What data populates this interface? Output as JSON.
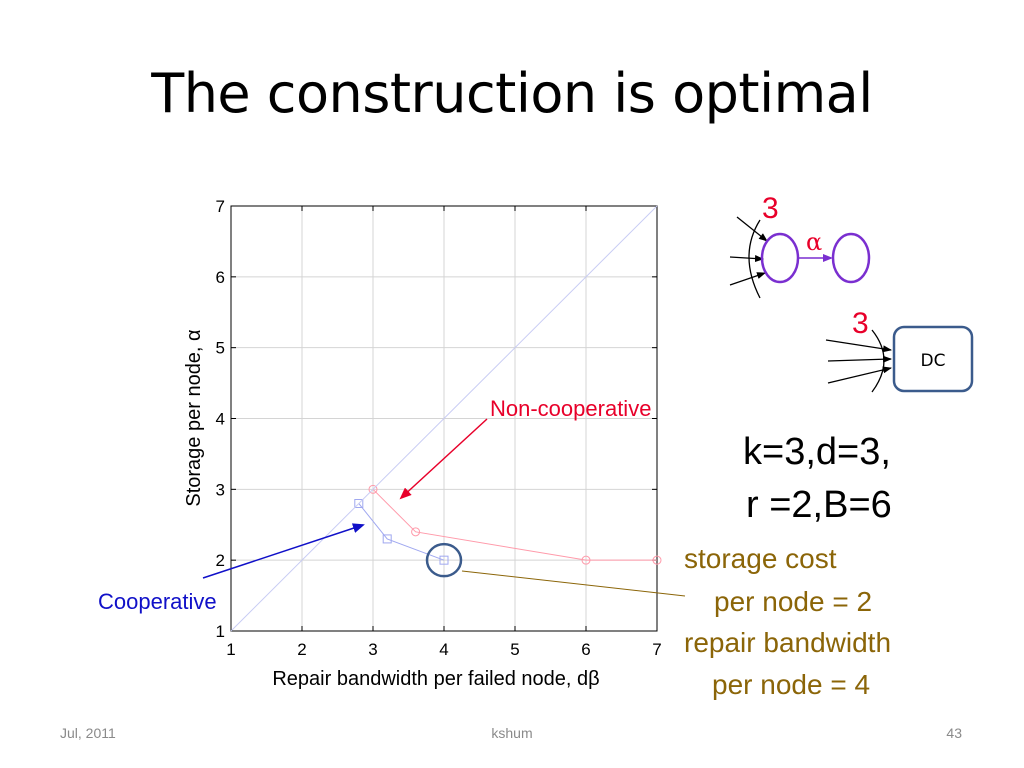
{
  "slide": {
    "title": "The construction is optimal",
    "footer": {
      "date": "Jul, 2011",
      "author": "kshum",
      "page": "43"
    }
  },
  "colors": {
    "noncoop": "#e8002a",
    "coop": "#1010c8",
    "brown": "#8B6508",
    "highlight_circle": "#3b5b8c",
    "node_stroke": "#7a2fd0",
    "dc_stroke": "#3b5b8c"
  },
  "chart_data": {
    "type": "line",
    "xlabel": "Repair bandwidth per failed node, dβ",
    "ylabel": "Storage per node, α",
    "xlim": [
      1,
      7
    ],
    "ylim": [
      1,
      7
    ],
    "xticks": [
      1,
      2,
      3,
      4,
      5,
      6,
      7
    ],
    "yticks": [
      1,
      2,
      3,
      4,
      5,
      6,
      7
    ],
    "grid": true,
    "series": [
      {
        "name": "Non-cooperative",
        "marker": "circle",
        "color": "#ff9aaa",
        "x": [
          3,
          3.6,
          6,
          7
        ],
        "y": [
          3,
          2.4,
          2,
          2
        ]
      },
      {
        "name": "Cooperative",
        "marker": "square",
        "color": "#a0a8f0",
        "x": [
          2.8,
          3.2,
          4
        ],
        "y": [
          2.8,
          2.3,
          2
        ]
      },
      {
        "name": "",
        "marker": "none",
        "color": "#c8ccf4",
        "x": [
          1,
          7
        ],
        "y": [
          1,
          7
        ]
      }
    ],
    "annotations": [
      {
        "text": "Non-cooperative",
        "color": "#e8002a",
        "points_to": [
          3.4,
          2.8
        ]
      },
      {
        "text": "Cooperative",
        "color": "#1010c8",
        "points_to": [
          2.85,
          2.5
        ]
      }
    ],
    "highlight": {
      "x": 4,
      "y": 2
    }
  },
  "diagram": {
    "top_count": "3",
    "alpha_label": "α",
    "bottom_count": "3",
    "dc_label": "DC"
  },
  "params": {
    "line1": "k=3,d=3,",
    "line2": "r =2,B=6"
  },
  "cost": {
    "line1": "storage cost",
    "line2": "per node = 2",
    "line3": "repair bandwidth",
    "line4": "per node = 4"
  }
}
